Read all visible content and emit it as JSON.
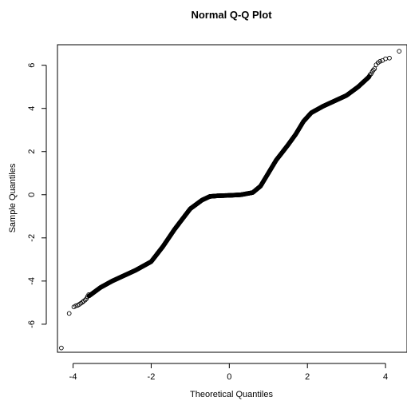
{
  "chart_data": {
    "type": "scatter",
    "title": "Normal Q-Q Plot",
    "xlabel": "Theoretical Quantiles",
    "ylabel": "Sample Quantiles",
    "xlim": [
      -4.4,
      4.55
    ],
    "ylim": [
      -7.3,
      6.95
    ],
    "x_ticks": [
      -4,
      -2,
      0,
      2,
      4
    ],
    "x_tick_labels": [
      "-4",
      "-2",
      "0",
      "2",
      "4"
    ],
    "y_ticks": [
      -6,
      -4,
      -2,
      0,
      2,
      4,
      6
    ],
    "y_tick_labels": [
      "-6",
      "-4",
      "-2",
      "0",
      "2",
      "4",
      "6"
    ],
    "grid": false,
    "marker": "open-circle",
    "curve_knots": {
      "x": [
        -4.1,
        -3.8,
        -3.6,
        -3.3,
        -3.0,
        -2.7,
        -2.4,
        -2.0,
        -1.7,
        -1.4,
        -1.0,
        -0.7,
        -0.5,
        -0.3,
        0.0,
        0.3,
        0.6,
        0.8,
        1.0,
        1.2,
        1.5,
        1.7,
        1.9,
        2.1,
        2.4,
        2.7,
        3.0,
        3.3,
        3.6
      ],
      "y": [
        -5.3,
        -5.1,
        -4.7,
        -4.3,
        -4.0,
        -3.75,
        -3.5,
        -3.1,
        -2.4,
        -1.6,
        -0.65,
        -0.25,
        -0.08,
        -0.05,
        -0.03,
        0.0,
        0.1,
        0.4,
        1.0,
        1.6,
        2.3,
        2.8,
        3.4,
        3.8,
        4.1,
        4.35,
        4.6,
        5.0,
        5.5
      ]
    },
    "tail_points": {
      "x": [
        -4.3,
        -4.1,
        -3.98,
        -3.93,
        -3.88,
        -3.84,
        -3.8,
        -3.76,
        -3.73,
        -3.69,
        -3.66,
        -3.63,
        -3.6,
        3.58,
        3.6,
        3.63,
        3.66,
        3.69,
        3.72,
        3.76,
        3.81,
        3.86,
        3.92,
        4.0,
        4.1,
        4.35
      ],
      "y": [
        -7.1,
        -5.5,
        -5.2,
        -5.15,
        -5.12,
        -5.08,
        -5.03,
        -4.98,
        -4.93,
        -4.88,
        -4.82,
        -4.72,
        -4.63,
        5.48,
        5.55,
        5.6,
        5.7,
        5.78,
        5.84,
        6.02,
        6.12,
        6.18,
        6.22,
        6.3,
        6.33,
        6.65
      ]
    }
  }
}
